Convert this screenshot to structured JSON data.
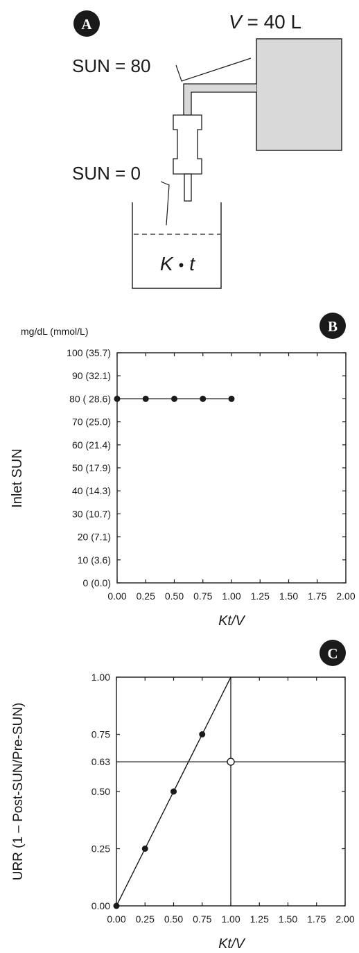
{
  "panel_a": {
    "badge": "A",
    "volume_label": "V = 40 L",
    "volume_var": "V",
    "volume_rest": " = 40 L",
    "sun_in_label": "SUN = 80",
    "sun_out_label": "SUN = 0",
    "clearance_k": "K",
    "clearance_dot": "•",
    "clearance_t": "t",
    "tank_color": "#d9d9d9"
  },
  "panel_b": {
    "badge": "B",
    "unit_label": "mg/dL (mmol/L)",
    "y_title": "Inlet SUN",
    "x_title": "Kt/V",
    "y_ticks": [
      "0 (0.0)",
      "10 (3.6)",
      "20 (7.1)",
      "30 (10.7)",
      "40 (14.3)",
      "50 (17.9)",
      "60 (21.4)",
      "70 (25.0)",
      "80 ( 28.6)",
      "90 (32.1)",
      "100 (35.7)"
    ],
    "x_ticks": [
      "0.00",
      "0.25",
      "0.50",
      "0.75",
      "1.00",
      "1.25",
      "1.50",
      "1.75",
      "2.00"
    ]
  },
  "panel_c": {
    "badge": "C",
    "y_title": "URR (1 – Post-SUN/Pre-SUN)",
    "x_title": "Kt/V",
    "y_ticks": [
      "0.00",
      "0.25",
      "0.50",
      "0.63",
      "0.75",
      "1.00"
    ],
    "x_ticks": [
      "0.00",
      "0.25",
      "0.50",
      "0.75",
      "1.00",
      "1.25",
      "1.50",
      "1.75",
      "2.00"
    ]
  },
  "chart_data": [
    {
      "type": "line",
      "panel": "B",
      "xlabel": "Kt/V",
      "ylabel": "Inlet SUN",
      "xlim": [
        0,
        2
      ],
      "ylim": [
        0,
        100
      ],
      "series": [
        {
          "x": [
            0,
            0.25,
            0.5,
            0.75,
            1.0
          ],
          "y": [
            80,
            80,
            80,
            80,
            80
          ]
        }
      ],
      "grid": false
    },
    {
      "type": "line",
      "panel": "C",
      "xlabel": "Kt/V",
      "ylabel": "URR (1 – Post-SUN/Pre-SUN)",
      "xlim": [
        0,
        2
      ],
      "ylim": [
        0,
        1
      ],
      "series": [
        {
          "x": [
            0,
            0.25,
            0.5,
            0.75
          ],
          "y": [
            0,
            0.25,
            0.5,
            0.75
          ]
        }
      ],
      "line": {
        "x": [
          0,
          1.0
        ],
        "y": [
          0,
          1.0
        ]
      },
      "reference_lines": {
        "vertical_x": 1.0,
        "horizontal_y": 0.63
      },
      "highlight_point": {
        "x": 1.0,
        "y": 0.63,
        "marker": "open-circle"
      },
      "grid": false
    }
  ]
}
